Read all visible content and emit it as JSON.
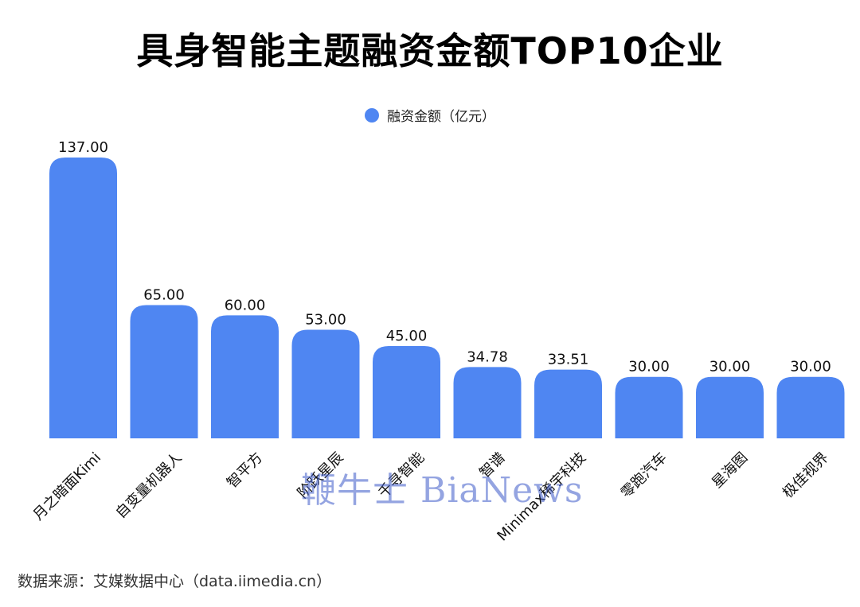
{
  "title": "具身智能主题融资金额TOP10企业",
  "legend": {
    "label": "融资金额（亿元）"
  },
  "source": "数据来源：艾媒数据中心（data.iimedia.cn）",
  "watermark": "鞭牛士 BiaNews",
  "colors": {
    "bar": "#4f86f2",
    "text": "#111111"
  },
  "chart_data": {
    "type": "bar",
    "title": "具身智能主题融资金额TOP10企业",
    "categories": [
      "月之暗面Kimi",
      "自变量机器人",
      "智平方",
      "阶跃星辰",
      "千寻智能",
      "智谱",
      "Minimax稀宇科技",
      "零跑汽车",
      "星海图",
      "极佳视界"
    ],
    "series": [
      {
        "name": "融资金额（亿元）",
        "values": [
          137.0,
          65.0,
          60.0,
          53.0,
          45.0,
          34.78,
          33.51,
          30.0,
          30.0,
          30.0
        ],
        "labels": [
          "137.00",
          "65.00",
          "60.00",
          "53.00",
          "45.00",
          "34.78",
          "33.51",
          "30.00",
          "30.00",
          "30.00"
        ]
      }
    ],
    "ylim": [
      0,
      137
    ],
    "grid": false,
    "legend_position": "top-center"
  }
}
